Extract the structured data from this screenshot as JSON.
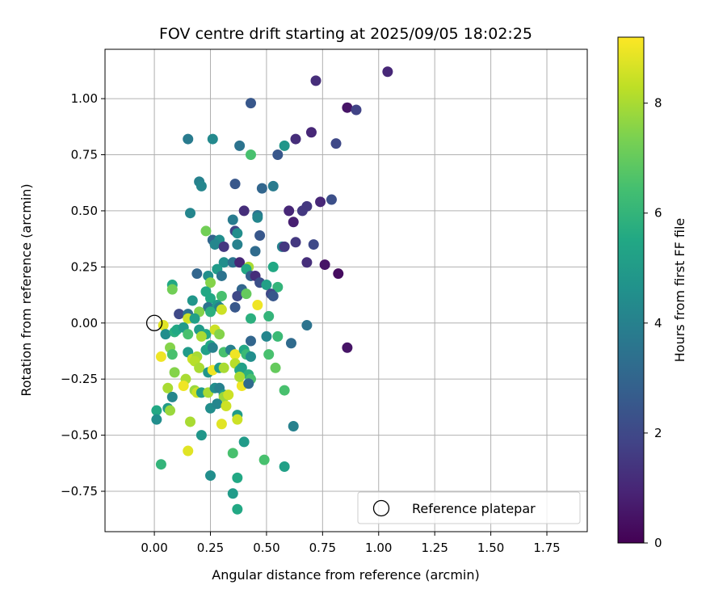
{
  "chart_data": {
    "type": "scatter",
    "title": "FOV centre drift starting at 2025/09/05 18:02:25",
    "xlabel": "Angular distance from reference (arcmin)",
    "ylabel": "Rotation from reference (arcmin)",
    "xlim": [
      -0.22,
      1.93
    ],
    "ylim": [
      -0.93,
      1.22
    ],
    "xticks": [
      0.0,
      0.25,
      0.5,
      0.75,
      1.0,
      1.25,
      1.5,
      1.75
    ],
    "xtick_labels": [
      "0.00",
      "0.25",
      "0.50",
      "0.75",
      "1.00",
      "1.25",
      "1.50",
      "1.75"
    ],
    "yticks": [
      -0.75,
      -0.5,
      -0.25,
      0.0,
      0.25,
      0.5,
      0.75,
      1.0
    ],
    "ytick_labels": [
      "−0.75",
      "−0.50",
      "−0.25",
      "0.00",
      "0.25",
      "0.50",
      "0.75",
      "1.00"
    ],
    "grid": true,
    "colormap": "viridis",
    "colorbar": {
      "label": "Hours from first FF file",
      "range": [
        0,
        9.2
      ],
      "ticks": [
        0,
        2,
        4,
        6,
        8
      ],
      "tick_labels": [
        "0",
        "2",
        "4",
        "6",
        "8"
      ]
    },
    "legend": {
      "placement": "lower-right",
      "entries": [
        {
          "label": "Reference platepar",
          "marker": "open-circle"
        }
      ]
    },
    "reference_point": {
      "x": 0.0,
      "y": 0.0
    },
    "points": [
      [
        1.04,
        1.12,
        1.0
      ],
      [
        0.72,
        1.08,
        1.2
      ],
      [
        0.86,
        0.96,
        0.5
      ],
      [
        0.9,
        0.95,
        1.8
      ],
      [
        0.43,
        0.98,
        2.5
      ],
      [
        0.7,
        0.85,
        1.0
      ],
      [
        0.81,
        0.8,
        2.0
      ],
      [
        0.63,
        0.82,
        1.2
      ],
      [
        0.15,
        0.82,
        3.8
      ],
      [
        0.26,
        0.82,
        4.3
      ],
      [
        0.38,
        0.79,
        3.5
      ],
      [
        0.58,
        0.79,
        4.8
      ],
      [
        0.43,
        0.75,
        6.5
      ],
      [
        0.55,
        0.75,
        2.5
      ],
      [
        0.2,
        0.63,
        4.0
      ],
      [
        0.21,
        0.61,
        4.2
      ],
      [
        0.36,
        0.62,
        2.5
      ],
      [
        0.48,
        0.6,
        3.0
      ],
      [
        0.53,
        0.61,
        3.8
      ],
      [
        0.79,
        0.55,
        2.2
      ],
      [
        0.74,
        0.54,
        1.0
      ],
      [
        0.68,
        0.52,
        1.5
      ],
      [
        0.66,
        0.5,
        1.5
      ],
      [
        0.6,
        0.5,
        1.0
      ],
      [
        0.4,
        0.5,
        1.2
      ],
      [
        0.16,
        0.49,
        4.2
      ],
      [
        0.46,
        0.48,
        3.5
      ],
      [
        0.46,
        0.47,
        4.2
      ],
      [
        0.35,
        0.46,
        3.8
      ],
      [
        0.62,
        0.45,
        0.8
      ],
      [
        0.23,
        0.41,
        7.2
      ],
      [
        0.36,
        0.41,
        1.8
      ],
      [
        0.37,
        0.4,
        4.5
      ],
      [
        0.26,
        0.37,
        3.0
      ],
      [
        0.29,
        0.37,
        4.5
      ],
      [
        0.27,
        0.35,
        4.2
      ],
      [
        0.31,
        0.34,
        1.5
      ],
      [
        0.37,
        0.35,
        4.0
      ],
      [
        0.47,
        0.39,
        2.5
      ],
      [
        0.57,
        0.34,
        4.0
      ],
      [
        0.58,
        0.34,
        1.5
      ],
      [
        0.63,
        0.36,
        1.5
      ],
      [
        0.71,
        0.35,
        2.0
      ],
      [
        0.45,
        0.32,
        3.2
      ],
      [
        0.31,
        0.27,
        4.5
      ],
      [
        0.35,
        0.27,
        3.5
      ],
      [
        0.38,
        0.27,
        1.0
      ],
      [
        0.42,
        0.25,
        8.0
      ],
      [
        0.68,
        0.27,
        1.2
      ],
      [
        0.76,
        0.26,
        0.5
      ],
      [
        0.82,
        0.22,
        0.3
      ],
      [
        0.53,
        0.25,
        5.5
      ],
      [
        0.28,
        0.24,
        5.0
      ],
      [
        0.19,
        0.22,
        3.0
      ],
      [
        0.24,
        0.21,
        4.5
      ],
      [
        0.3,
        0.21,
        3.5
      ],
      [
        0.41,
        0.24,
        5.5
      ],
      [
        0.43,
        0.21,
        2.8
      ],
      [
        0.45,
        0.21,
        1.2
      ],
      [
        0.47,
        0.18,
        2.2
      ],
      [
        0.25,
        0.18,
        7.5
      ],
      [
        0.39,
        0.15,
        3.0
      ],
      [
        0.5,
        0.17,
        5.2
      ],
      [
        0.55,
        0.16,
        6.0
      ],
      [
        0.08,
        0.17,
        5.5
      ],
      [
        0.08,
        0.15,
        7.2
      ],
      [
        0.23,
        0.14,
        5.5
      ],
      [
        0.37,
        0.12,
        2.0
      ],
      [
        0.41,
        0.13,
        7.0
      ],
      [
        0.52,
        0.13,
        2.0
      ],
      [
        0.53,
        0.12,
        2.5
      ],
      [
        0.17,
        0.1,
        4.8
      ],
      [
        0.25,
        0.11,
        5.5
      ],
      [
        0.3,
        0.12,
        6.5
      ],
      [
        0.46,
        0.08,
        9.0
      ],
      [
        0.24,
        0.07,
        3.5
      ],
      [
        0.28,
        0.08,
        5.0
      ],
      [
        0.29,
        0.07,
        4.0
      ],
      [
        0.3,
        0.06,
        8.5
      ],
      [
        0.36,
        0.07,
        2.5
      ],
      [
        0.11,
        0.04,
        2.0
      ],
      [
        0.15,
        0.04,
        3.5
      ],
      [
        0.2,
        0.05,
        7.5
      ],
      [
        0.25,
        0.05,
        5.8
      ],
      [
        0.43,
        0.02,
        5.8
      ],
      [
        0.51,
        0.03,
        6.0
      ],
      [
        0.68,
        -0.01,
        3.5
      ],
      [
        0.15,
        0.02,
        8.5
      ],
      [
        0.18,
        0.02,
        5.2
      ],
      [
        0.04,
        -0.01,
        8.8
      ],
      [
        0.05,
        -0.05,
        4.5
      ],
      [
        0.09,
        -0.04,
        5.8
      ],
      [
        0.1,
        -0.03,
        5.5
      ],
      [
        0.13,
        -0.02,
        5.0
      ],
      [
        0.2,
        -0.03,
        5.0
      ],
      [
        0.23,
        -0.05,
        5.5
      ],
      [
        0.27,
        -0.03,
        8.5
      ],
      [
        0.29,
        -0.05,
        7.5
      ],
      [
        0.15,
        -0.05,
        6.5
      ],
      [
        0.21,
        -0.06,
        8.0
      ],
      [
        0.5,
        -0.06,
        4.2
      ],
      [
        0.55,
        -0.06,
        6.2
      ],
      [
        0.43,
        -0.08,
        3.0
      ],
      [
        0.61,
        -0.09,
        3.2
      ],
      [
        0.86,
        -0.11,
        0.5
      ],
      [
        0.03,
        -0.15,
        9.0
      ],
      [
        0.07,
        -0.11,
        7.5
      ],
      [
        0.08,
        -0.14,
        6.5
      ],
      [
        0.15,
        -0.13,
        5.0
      ],
      [
        0.17,
        -0.16,
        8.5
      ],
      [
        0.19,
        -0.15,
        8.0
      ],
      [
        0.23,
        -0.12,
        5.2
      ],
      [
        0.25,
        -0.1,
        5.5
      ],
      [
        0.26,
        -0.11,
        4.0
      ],
      [
        0.31,
        -0.13,
        6.5
      ],
      [
        0.34,
        -0.12,
        4.0
      ],
      [
        0.36,
        -0.14,
        9.0
      ],
      [
        0.4,
        -0.12,
        5.5
      ],
      [
        0.41,
        -0.14,
        6.2
      ],
      [
        0.43,
        -0.15,
        4.5
      ],
      [
        0.51,
        -0.14,
        6.5
      ],
      [
        0.18,
        -0.17,
        8.2
      ],
      [
        0.2,
        -0.2,
        8.0
      ],
      [
        0.24,
        -0.22,
        4.8
      ],
      [
        0.26,
        -0.21,
        9.0
      ],
      [
        0.29,
        -0.2,
        5.0
      ],
      [
        0.31,
        -0.2,
        8.0
      ],
      [
        0.36,
        -0.18,
        8.2
      ],
      [
        0.38,
        -0.21,
        5.5
      ],
      [
        0.39,
        -0.2,
        5.2
      ],
      [
        0.42,
        -0.23,
        5.8
      ],
      [
        0.43,
        -0.25,
        6.5
      ],
      [
        0.54,
        -0.2,
        7.0
      ],
      [
        0.09,
        -0.22,
        7.5
      ],
      [
        0.14,
        -0.25,
        8.0
      ],
      [
        0.13,
        -0.28,
        9.0
      ],
      [
        0.18,
        -0.3,
        7.8
      ],
      [
        0.19,
        -0.31,
        8.5
      ],
      [
        0.21,
        -0.31,
        5.0
      ],
      [
        0.24,
        -0.31,
        8.0
      ],
      [
        0.27,
        -0.29,
        4.5
      ],
      [
        0.29,
        -0.29,
        4.0
      ],
      [
        0.31,
        -0.32,
        5.0
      ],
      [
        0.31,
        -0.33,
        7.8
      ],
      [
        0.33,
        -0.32,
        8.5
      ],
      [
        0.39,
        -0.28,
        9.0
      ],
      [
        0.38,
        -0.24,
        8.0
      ],
      [
        0.42,
        -0.27,
        3.2
      ],
      [
        0.58,
        -0.3,
        6.5
      ],
      [
        0.06,
        -0.29,
        8.0
      ],
      [
        0.08,
        -0.33,
        4.2
      ],
      [
        0.06,
        -0.38,
        5.0
      ],
      [
        0.07,
        -0.39,
        7.8
      ],
      [
        0.01,
        -0.39,
        5.5
      ],
      [
        0.01,
        -0.43,
        4.5
      ],
      [
        0.25,
        -0.38,
        4.5
      ],
      [
        0.28,
        -0.36,
        4.2
      ],
      [
        0.32,
        -0.37,
        8.5
      ],
      [
        0.16,
        -0.44,
        8.0
      ],
      [
        0.3,
        -0.45,
        8.8
      ],
      [
        0.37,
        -0.41,
        5.0
      ],
      [
        0.37,
        -0.43,
        8.5
      ],
      [
        0.62,
        -0.46,
        4.0
      ],
      [
        0.21,
        -0.5,
        4.8
      ],
      [
        0.4,
        -0.53,
        5.0
      ],
      [
        0.35,
        -0.58,
        6.5
      ],
      [
        0.15,
        -0.57,
        8.8
      ],
      [
        0.03,
        -0.63,
        6.0
      ],
      [
        0.49,
        -0.61,
        6.5
      ],
      [
        0.58,
        -0.64,
        5.2
      ],
      [
        0.25,
        -0.68,
        4.5
      ],
      [
        0.37,
        -0.69,
        5.5
      ],
      [
        0.35,
        -0.76,
        5.0
      ],
      [
        0.37,
        -0.83,
        5.5
      ]
    ]
  }
}
